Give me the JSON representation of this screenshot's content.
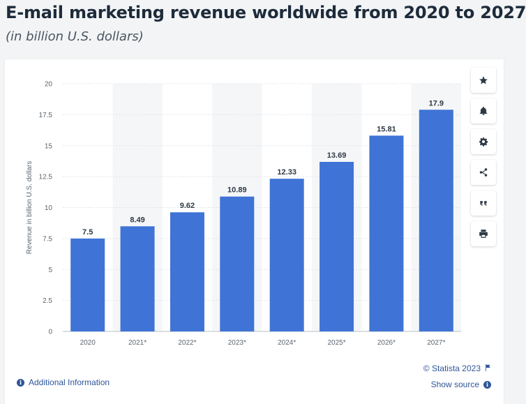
{
  "header": {
    "title": "E-mail marketing revenue worldwide from 2020 to 2027",
    "subtitle": "(in billion U.S. dollars)"
  },
  "chart_data": {
    "type": "bar",
    "categories": [
      "2020",
      "2021*",
      "2022*",
      "2023*",
      "2024*",
      "2025*",
      "2026*",
      "2027*"
    ],
    "values": [
      7.5,
      8.49,
      9.62,
      10.89,
      12.33,
      13.69,
      15.81,
      17.9
    ],
    "value_labels": [
      "7.5",
      "8.49",
      "9.62",
      "10.89",
      "12.33",
      "13.69",
      "15.81",
      "17.9"
    ],
    "ylabel": "Revenue in billion U.S. dollars",
    "xlabel": "",
    "ylim": [
      0,
      20
    ],
    "yticks": [
      "0",
      "2.5",
      "5",
      "7.5",
      "10",
      "12.5",
      "15",
      "17.5",
      "20"
    ],
    "ytick_values": [
      0,
      2.5,
      5,
      7.5,
      10,
      12.5,
      15,
      17.5,
      20
    ],
    "bar_color": "#3f74d6",
    "alt_band_color": "#f5f6f8",
    "grid": true,
    "legend": "none"
  },
  "toolbar": {
    "items": [
      {
        "icon": "star-icon",
        "name": "favorite-button"
      },
      {
        "icon": "bell-icon",
        "name": "notification-button"
      },
      {
        "icon": "gear-icon",
        "name": "settings-button"
      },
      {
        "icon": "share-icon",
        "name": "share-button"
      },
      {
        "icon": "quote-icon",
        "name": "cite-button"
      },
      {
        "icon": "print-icon",
        "name": "print-button"
      }
    ]
  },
  "footer": {
    "additional_info": "Additional Information",
    "copyright": "© Statista 2023",
    "show_source": "Show source",
    "link_color": "#2f5597"
  }
}
